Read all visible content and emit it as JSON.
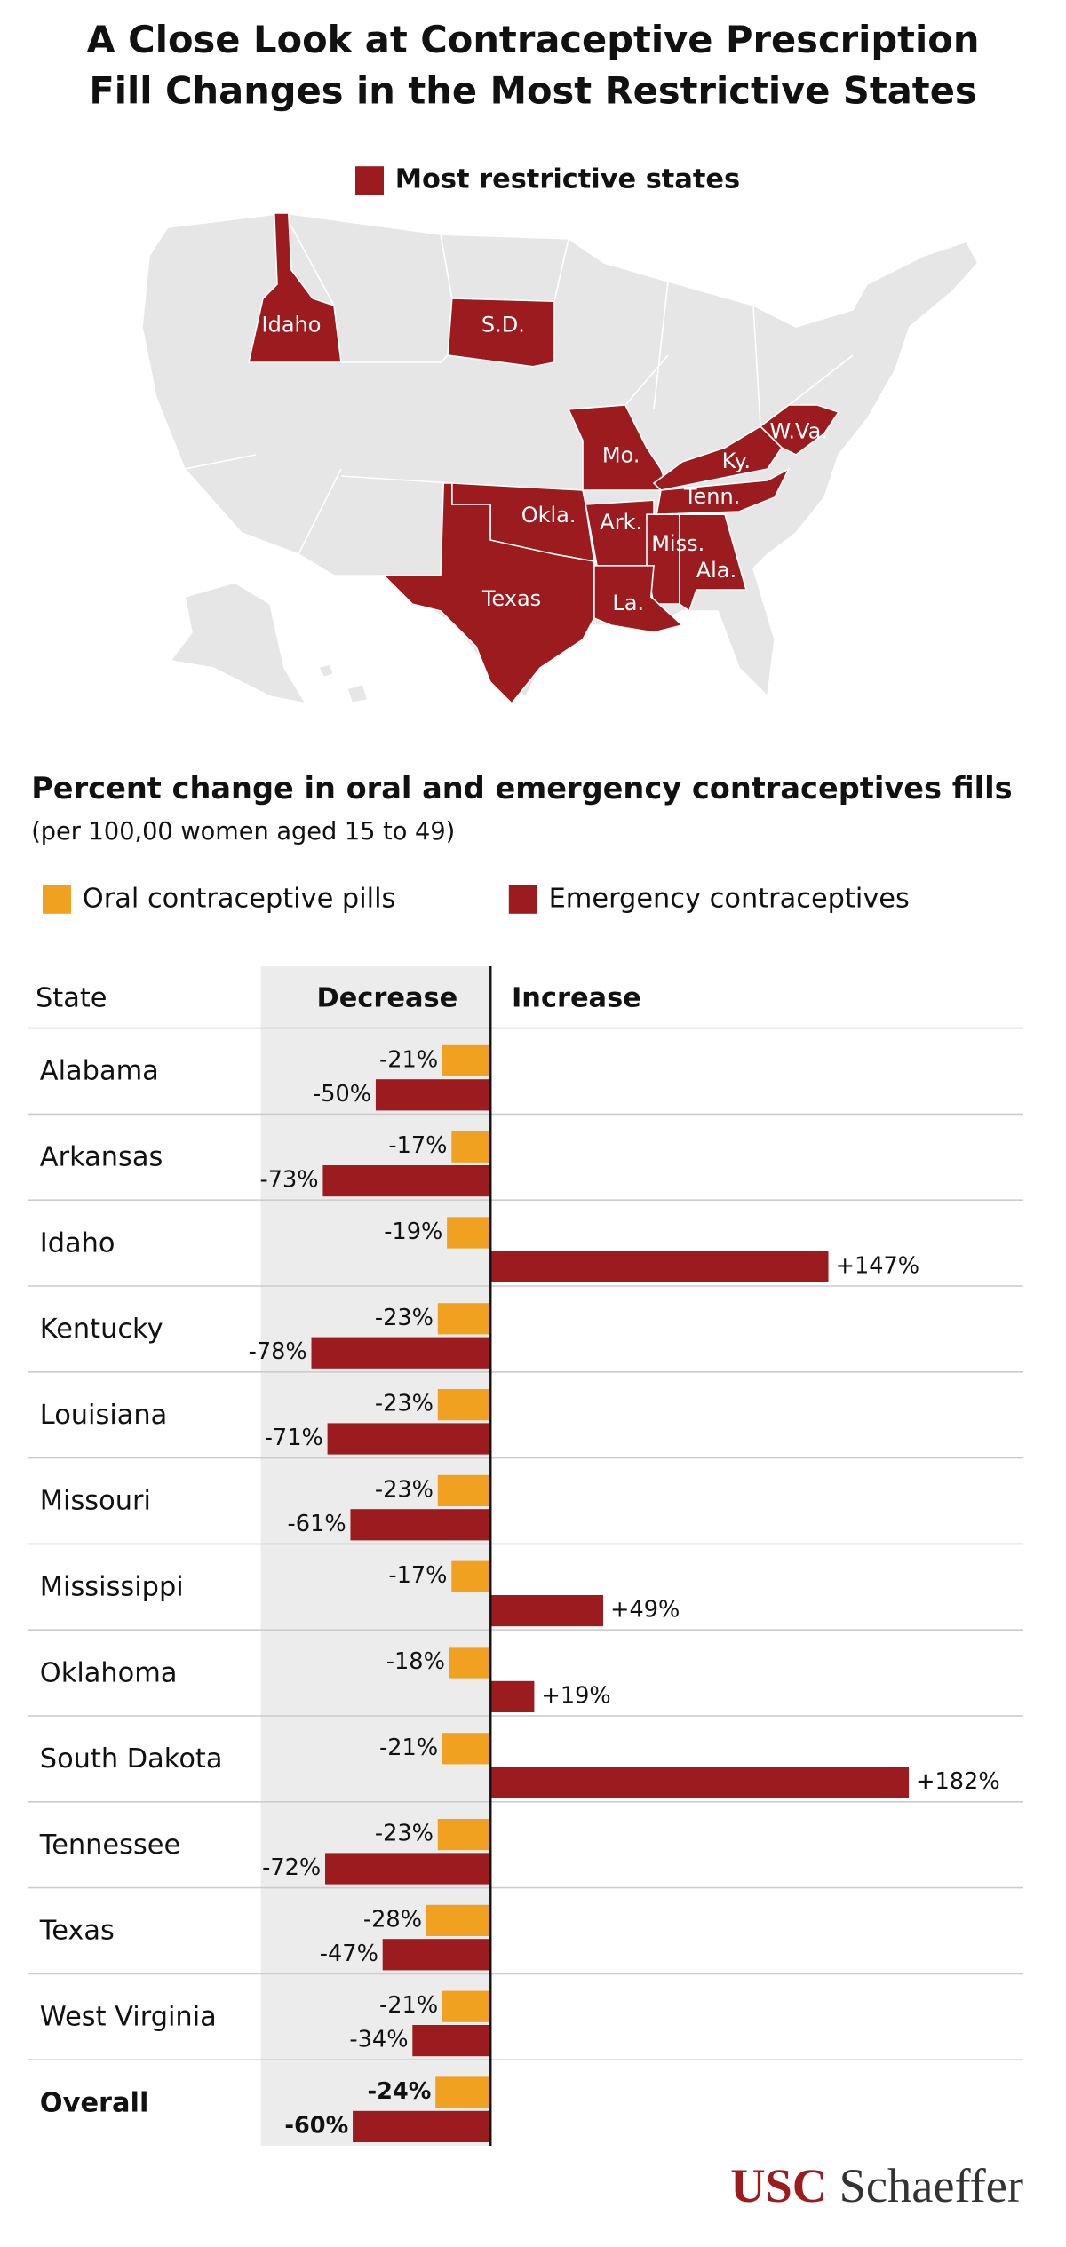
{
  "title": [
    "A Close Look at Contraceptive Prescription",
    "Fill Changes in the Most Restrictive States"
  ],
  "map": {
    "legend": "Most restrictive states",
    "color": "#9b1b1f",
    "labels": [
      "Idaho",
      "S.D.",
      "Mo.",
      "Ky.",
      "W.Va.",
      "Tenn.",
      "Okla.",
      "Ark.",
      "Miss.",
      "Ala.",
      "Texas",
      "La."
    ]
  },
  "chart_data": {
    "type": "bar",
    "orientation": "horizontal",
    "title": "Percent change in oral and emergency contraceptives fills",
    "subtitle": "(per 100,00 women aged 15 to 49)",
    "header": {
      "category": "State",
      "negative": "Decrease",
      "positive": "Increase"
    },
    "categories": [
      "Alabama",
      "Arkansas",
      "Idaho",
      "Kentucky",
      "Louisiana",
      "Missouri",
      "Mississippi",
      "Oklahoma",
      "South Dakota",
      "Tennessee",
      "Texas",
      "West Virginia",
      "Overall"
    ],
    "series": [
      {
        "name": "Oral contraceptive pills",
        "color": "#f0a11f",
        "values": [
          -21,
          -17,
          -19,
          -23,
          -23,
          -23,
          -17,
          -18,
          -21,
          -23,
          -28,
          -21,
          -24
        ],
        "value_labels": [
          "-21%",
          "-17%",
          "-19%",
          "-23%",
          "-23%",
          "-23%",
          "-17%",
          "-18%",
          "-21%",
          "-23%",
          "-28%",
          "-21%",
          "-24%"
        ]
      },
      {
        "name": "Emergency contraceptives",
        "color": "#9b1b1f",
        "values": [
          -50,
          -73,
          147,
          -78,
          -71,
          -61,
          49,
          19,
          182,
          -72,
          -47,
          -34,
          -60
        ],
        "value_labels": [
          "-50%",
          "-73%",
          "+147%",
          "-78%",
          "-71%",
          "-61%",
          "+49%",
          "+19%",
          "+182%",
          "-72%",
          "-47%",
          "-34%",
          "-60%"
        ]
      }
    ],
    "xlim": [
      -100,
      200
    ],
    "emphasize_last": true
  },
  "footer": {
    "brand": "USC",
    "name": "Schaeffer"
  }
}
